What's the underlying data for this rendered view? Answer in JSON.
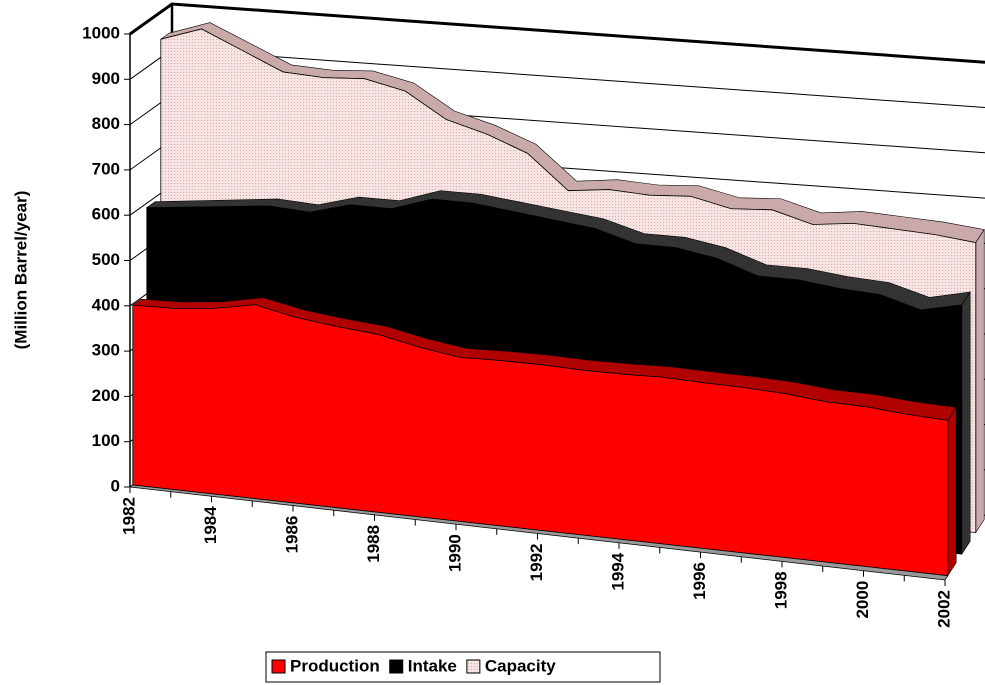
{
  "chart_data": {
    "type": "area3d",
    "y_label": "(Million Barrel/year)",
    "categories": [
      "1982",
      null,
      "1984",
      null,
      "1986",
      null,
      "1988",
      null,
      "1990",
      null,
      "1992",
      null,
      "1994",
      null,
      "1996",
      null,
      "1998",
      null,
      "2000",
      null,
      "2002"
    ],
    "series": [
      {
        "name": "Production",
        "color": "#ff0000",
        "values": [
          397,
          400,
          410,
          428,
          410,
          400,
          393,
          375,
          362,
          365,
          366,
          364,
          365,
          368,
          366,
          365,
          362,
          354,
          353,
          346,
          343
        ]
      },
      {
        "name": "Intake",
        "color": "#000000",
        "values": [
          590,
          600,
          610,
          620,
          615,
          640,
          640,
          670,
          670,
          660,
          650,
          640,
          615,
          615,
          600,
          570,
          570,
          560,
          555,
          530,
          550
        ]
      },
      {
        "name": "Capacity",
        "color": "#f2dcdc",
        "values": [
          940,
          970,
          930,
          890,
          885,
          890,
          870,
          815,
          790,
          755,
          680,
          690,
          685,
          690,
          670,
          675,
          650,
          660,
          655,
          650,
          640
        ]
      }
    ],
    "ylim": [
      0,
      1000
    ],
    "yticks": [
      0,
      100,
      200,
      300,
      400,
      500,
      600,
      700,
      800,
      900,
      1000
    ],
    "grid": true
  }
}
